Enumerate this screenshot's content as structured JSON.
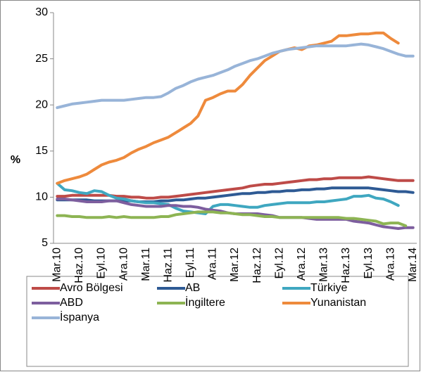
{
  "chart_data": {
    "type": "line",
    "y_label": "%",
    "categories": [
      "Mar.10",
      null,
      null,
      "Haz.10",
      null,
      null,
      "Eyl.10",
      null,
      null,
      "Ara.10",
      null,
      null,
      "Mar.11",
      null,
      null,
      "Haz.11",
      null,
      null,
      "Eyl.11",
      null,
      null,
      "Ara.11",
      null,
      null,
      "Mar.12",
      null,
      null,
      "Haz.12",
      null,
      null,
      "Eyl.12",
      null,
      null,
      "Ara.12",
      null,
      null,
      "Mar.13",
      null,
      null,
      "Haz.13",
      null,
      null,
      "Eyl.13",
      null,
      null,
      "Ara.13",
      null,
      null,
      "Mar.14"
    ],
    "ylim": [
      5,
      30
    ],
    "yticks": [
      5,
      10,
      15,
      20,
      25,
      30
    ],
    "grid": false,
    "series": [
      {
        "name": "Avro Bölgesi",
        "color": "#be4b48",
        "values": [
          10.1,
          10.1,
          10.2,
          10.2,
          10.2,
          10.2,
          10.2,
          10.2,
          10.1,
          10.1,
          10.0,
          10.0,
          9.9,
          9.9,
          10.0,
          10.0,
          10.1,
          10.2,
          10.3,
          10.4,
          10.5,
          10.6,
          10.7,
          10.8,
          10.9,
          11.0,
          11.2,
          11.3,
          11.4,
          11.4,
          11.5,
          11.6,
          11.7,
          11.8,
          11.9,
          11.9,
          12.0,
          12.0,
          12.1,
          12.1,
          12.1,
          12.1,
          12.2,
          12.1,
          12.0,
          11.9,
          11.8,
          11.8,
          11.8
        ]
      },
      {
        "name": "AB",
        "color": "#2e5a94",
        "values": [
          9.7,
          9.7,
          9.7,
          9.7,
          9.7,
          9.6,
          9.6,
          9.6,
          9.6,
          9.6,
          9.6,
          9.5,
          9.5,
          9.5,
          9.6,
          9.6,
          9.7,
          9.7,
          9.8,
          9.9,
          9.9,
          10.0,
          10.1,
          10.2,
          10.3,
          10.4,
          10.4,
          10.5,
          10.5,
          10.6,
          10.6,
          10.7,
          10.7,
          10.8,
          10.8,
          10.9,
          10.9,
          11.0,
          11.0,
          11.0,
          11.0,
          11.0,
          11.0,
          10.9,
          10.8,
          10.7,
          10.6,
          10.6,
          10.5
        ]
      },
      {
        "name": "Türkiye",
        "color": "#3fa7c0",
        "values": [
          11.5,
          10.8,
          10.7,
          10.5,
          10.4,
          10.7,
          10.6,
          10.2,
          9.9,
          9.8,
          9.6,
          9.5,
          9.4,
          9.4,
          9.3,
          9.2,
          8.8,
          8.5,
          8.4,
          8.3,
          8.2,
          9.0,
          9.2,
          9.2,
          9.1,
          9.0,
          8.9,
          8.9,
          9.1,
          9.2,
          9.3,
          9.4,
          9.4,
          9.4,
          9.4,
          9.5,
          9.5,
          9.6,
          9.7,
          9.8,
          10.1,
          10.1,
          10.2,
          9.9,
          9.8,
          9.5,
          9.1,
          null,
          null
        ]
      },
      {
        "name": "ABD",
        "color": "#7d5e9e",
        "values": [
          9.8,
          9.8,
          9.7,
          9.6,
          9.5,
          9.5,
          9.5,
          9.6,
          9.6,
          9.4,
          9.2,
          9.1,
          9.0,
          9.0,
          9.0,
          9.1,
          9.1,
          9.0,
          9.0,
          8.9,
          8.7,
          8.6,
          8.5,
          8.3,
          8.2,
          8.2,
          8.2,
          8.2,
          8.1,
          8.0,
          7.8,
          7.8,
          7.8,
          7.8,
          7.7,
          7.6,
          7.6,
          7.6,
          7.6,
          7.6,
          7.4,
          7.3,
          7.2,
          7.0,
          6.8,
          6.7,
          6.6,
          6.7,
          6.7
        ]
      },
      {
        "name": "İngiltere",
        "color": "#8db453",
        "values": [
          8.0,
          8.0,
          7.9,
          7.9,
          7.8,
          7.8,
          7.8,
          7.9,
          7.8,
          7.9,
          7.8,
          7.8,
          7.8,
          7.8,
          7.9,
          7.9,
          8.1,
          8.2,
          8.3,
          8.4,
          8.4,
          8.4,
          8.3,
          8.3,
          8.2,
          8.1,
          8.1,
          8.0,
          7.9,
          7.9,
          7.8,
          7.8,
          7.8,
          7.8,
          7.8,
          7.8,
          7.8,
          7.8,
          7.8,
          7.7,
          7.7,
          7.6,
          7.5,
          7.4,
          7.1,
          7.2,
          7.2,
          6.9,
          null
        ]
      },
      {
        "name": "Yunanistan",
        "color": "#ee8a3c",
        "values": [
          11.5,
          11.8,
          12.0,
          12.2,
          12.5,
          13.0,
          13.5,
          13.8,
          14.0,
          14.3,
          14.8,
          15.2,
          15.5,
          15.9,
          16.2,
          16.5,
          17.0,
          17.5,
          18.0,
          18.8,
          20.5,
          20.8,
          21.2,
          21.5,
          21.5,
          22.2,
          23.2,
          24.0,
          24.8,
          25.3,
          25.8,
          26.0,
          26.2,
          26.0,
          26.4,
          26.5,
          26.7,
          26.9,
          27.5,
          27.5,
          27.6,
          27.7,
          27.7,
          27.8,
          27.8,
          27.2,
          26.7,
          null,
          null
        ]
      },
      {
        "name": "İspanya",
        "color": "#98b4d8",
        "values": [
          19.7,
          19.9,
          20.1,
          20.2,
          20.3,
          20.4,
          20.5,
          20.5,
          20.5,
          20.5,
          20.6,
          20.7,
          20.8,
          20.8,
          20.9,
          21.3,
          21.8,
          22.1,
          22.5,
          22.8,
          23.0,
          23.2,
          23.5,
          23.8,
          24.2,
          24.5,
          24.8,
          25.0,
          25.3,
          25.6,
          25.8,
          26.0,
          26.1,
          26.2,
          26.3,
          26.4,
          26.4,
          26.4,
          26.4,
          26.4,
          26.5,
          26.6,
          26.5,
          26.3,
          26.1,
          25.8,
          25.5,
          25.3,
          25.3
        ]
      }
    ]
  }
}
